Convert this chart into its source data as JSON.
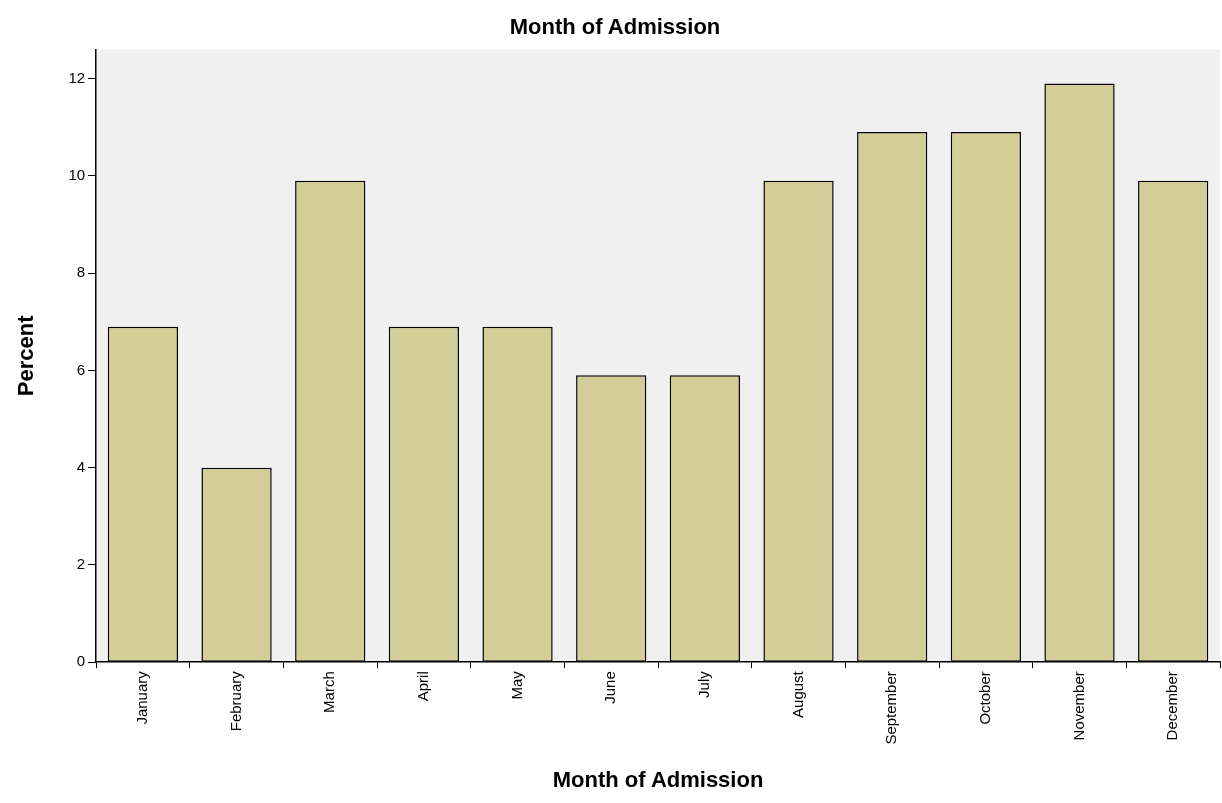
{
  "chart_data": {
    "type": "bar",
    "title": "Month of Admission",
    "xlabel": "Month of Admission",
    "ylabel": "Percent",
    "categories": [
      "January",
      "February",
      "March",
      "April",
      "May",
      "June",
      "July",
      "August",
      "September",
      "October",
      "November",
      "December"
    ],
    "values": [
      6.9,
      4.0,
      9.9,
      6.9,
      6.9,
      5.9,
      5.9,
      9.9,
      10.9,
      10.9,
      11.9,
      9.9
    ],
    "color": "#d3ce97",
    "ylim": [
      0,
      12.6
    ],
    "yticks": [
      0,
      2,
      4,
      6,
      8,
      10,
      12
    ],
    "grid": false,
    "legend": false
  }
}
